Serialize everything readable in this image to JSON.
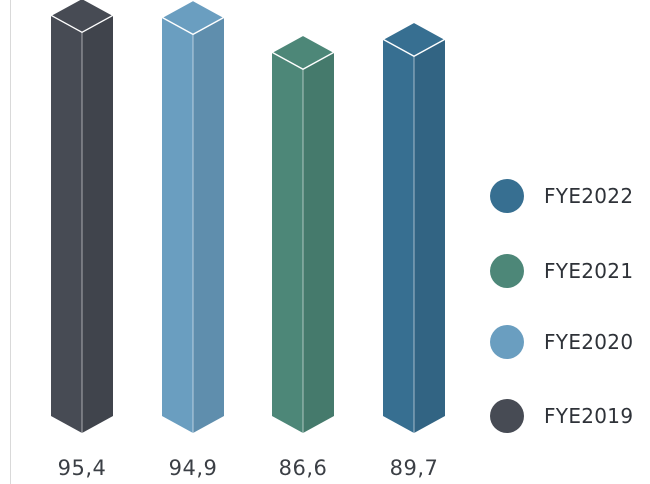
{
  "chart_data": {
    "type": "bar",
    "style": "3d-columns",
    "categories": [
      "FYE2019",
      "FYE2020",
      "FYE2021",
      "FYE2022"
    ],
    "values": [
      95.4,
      94.9,
      86.6,
      89.7
    ],
    "value_labels": [
      "95,4",
      "94,9",
      "86,6",
      "89,7"
    ],
    "colors": [
      "#474b54",
      "#6a9ec0",
      "#4d8778",
      "#376f91"
    ],
    "legend": {
      "position": "right",
      "items": [
        {
          "label": "FYE2022",
          "color": "#376f91"
        },
        {
          "label": "FYE2021",
          "color": "#4d8778"
        },
        {
          "label": "FYE2020",
          "color": "#6a9ec0"
        },
        {
          "label": "FYE2019",
          "color": "#474b54"
        }
      ]
    },
    "title": "",
    "xlabel": "",
    "ylabel": "",
    "ylim": [
      0,
      100
    ],
    "grid": false
  }
}
